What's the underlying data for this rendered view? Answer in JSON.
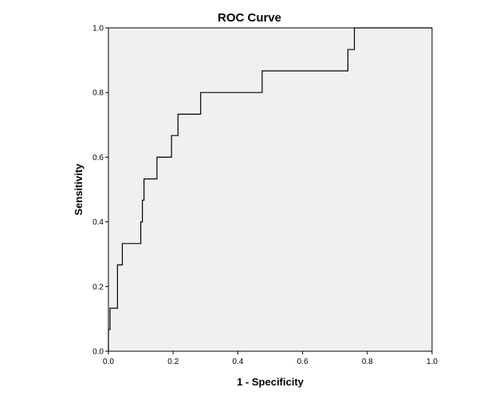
{
  "chart_data": {
    "type": "line",
    "title": "ROC Curve",
    "xlabel": "1 - Specificity",
    "ylabel": "Sensitivity",
    "xlim": [
      0.0,
      1.0
    ],
    "ylim": [
      0.0,
      1.0
    ],
    "x_ticks": [
      "0.0",
      "0.2",
      "0.4",
      "0.6",
      "0.8",
      "1.0"
    ],
    "y_ticks": [
      "0.0",
      "0.2",
      "0.4",
      "0.6",
      "0.8",
      "1.0"
    ],
    "x_tick_values": [
      0.0,
      0.2,
      0.4,
      0.6,
      0.8,
      1.0
    ],
    "y_tick_values": [
      0.0,
      0.2,
      0.4,
      0.6,
      0.8,
      1.0
    ],
    "grid": false,
    "legend": "none",
    "colors": {
      "plot_background": "#f0f0f0",
      "line": "#000000",
      "frame": "#000000"
    },
    "series": [
      {
        "x": [
          0.0,
          0.0,
          0.005,
          0.005,
          0.028,
          0.028,
          0.043,
          0.043,
          0.1,
          0.1,
          0.105,
          0.105,
          0.11,
          0.11,
          0.15,
          0.15,
          0.195,
          0.195,
          0.215,
          0.215,
          0.285,
          0.285,
          0.475,
          0.475,
          0.74,
          0.74,
          0.76,
          0.76,
          1.0
        ],
        "y": [
          0.0,
          0.067,
          0.067,
          0.133,
          0.133,
          0.267,
          0.267,
          0.333,
          0.333,
          0.4,
          0.4,
          0.467,
          0.467,
          0.533,
          0.533,
          0.6,
          0.6,
          0.667,
          0.667,
          0.733,
          0.733,
          0.8,
          0.8,
          0.867,
          0.867,
          0.933,
          0.933,
          1.0,
          1.0
        ]
      }
    ]
  }
}
